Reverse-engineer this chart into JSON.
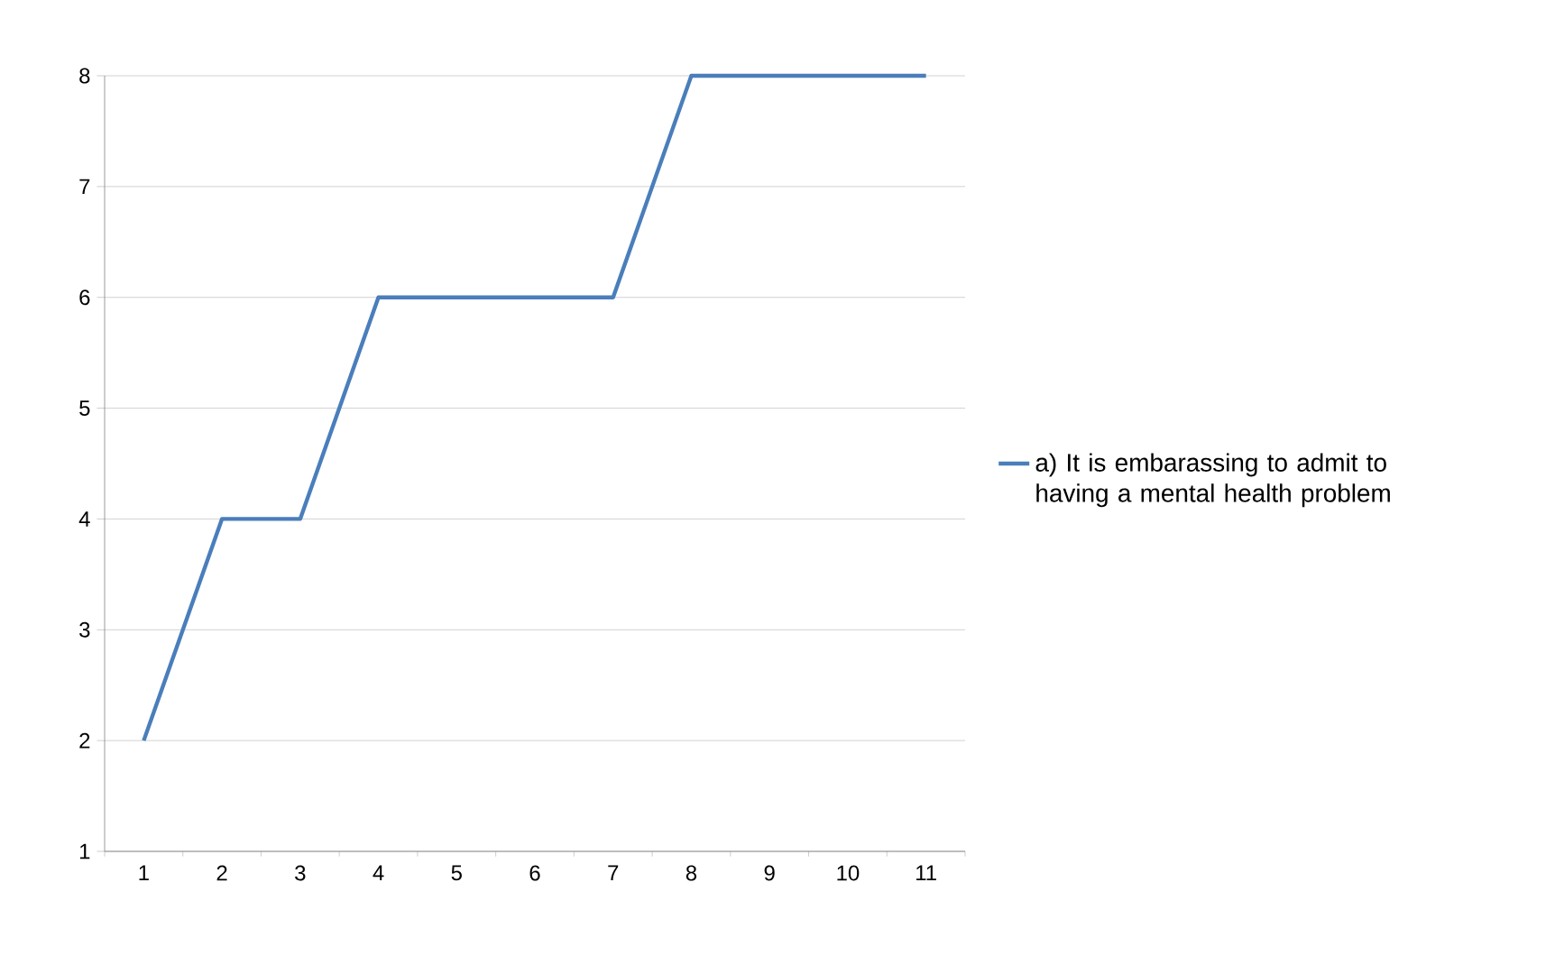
{
  "chart_data": {
    "type": "line",
    "categories": [
      "1",
      "2",
      "3",
      "4",
      "5",
      "6",
      "7",
      "8",
      "9",
      "10",
      "11"
    ],
    "series": [
      {
        "name": "a) It is embarassing to admit to having a mental health problem",
        "color": "#4a7ebb",
        "values": [
          2,
          4,
          4,
          6,
          6,
          6,
          6,
          8,
          8,
          8,
          8
        ]
      }
    ],
    "ylim": [
      1,
      8
    ],
    "yticks": [
      1,
      2,
      3,
      4,
      5,
      6,
      7,
      8
    ],
    "grid": "y",
    "legend": "right",
    "marker": "none",
    "line_style": "solid"
  }
}
